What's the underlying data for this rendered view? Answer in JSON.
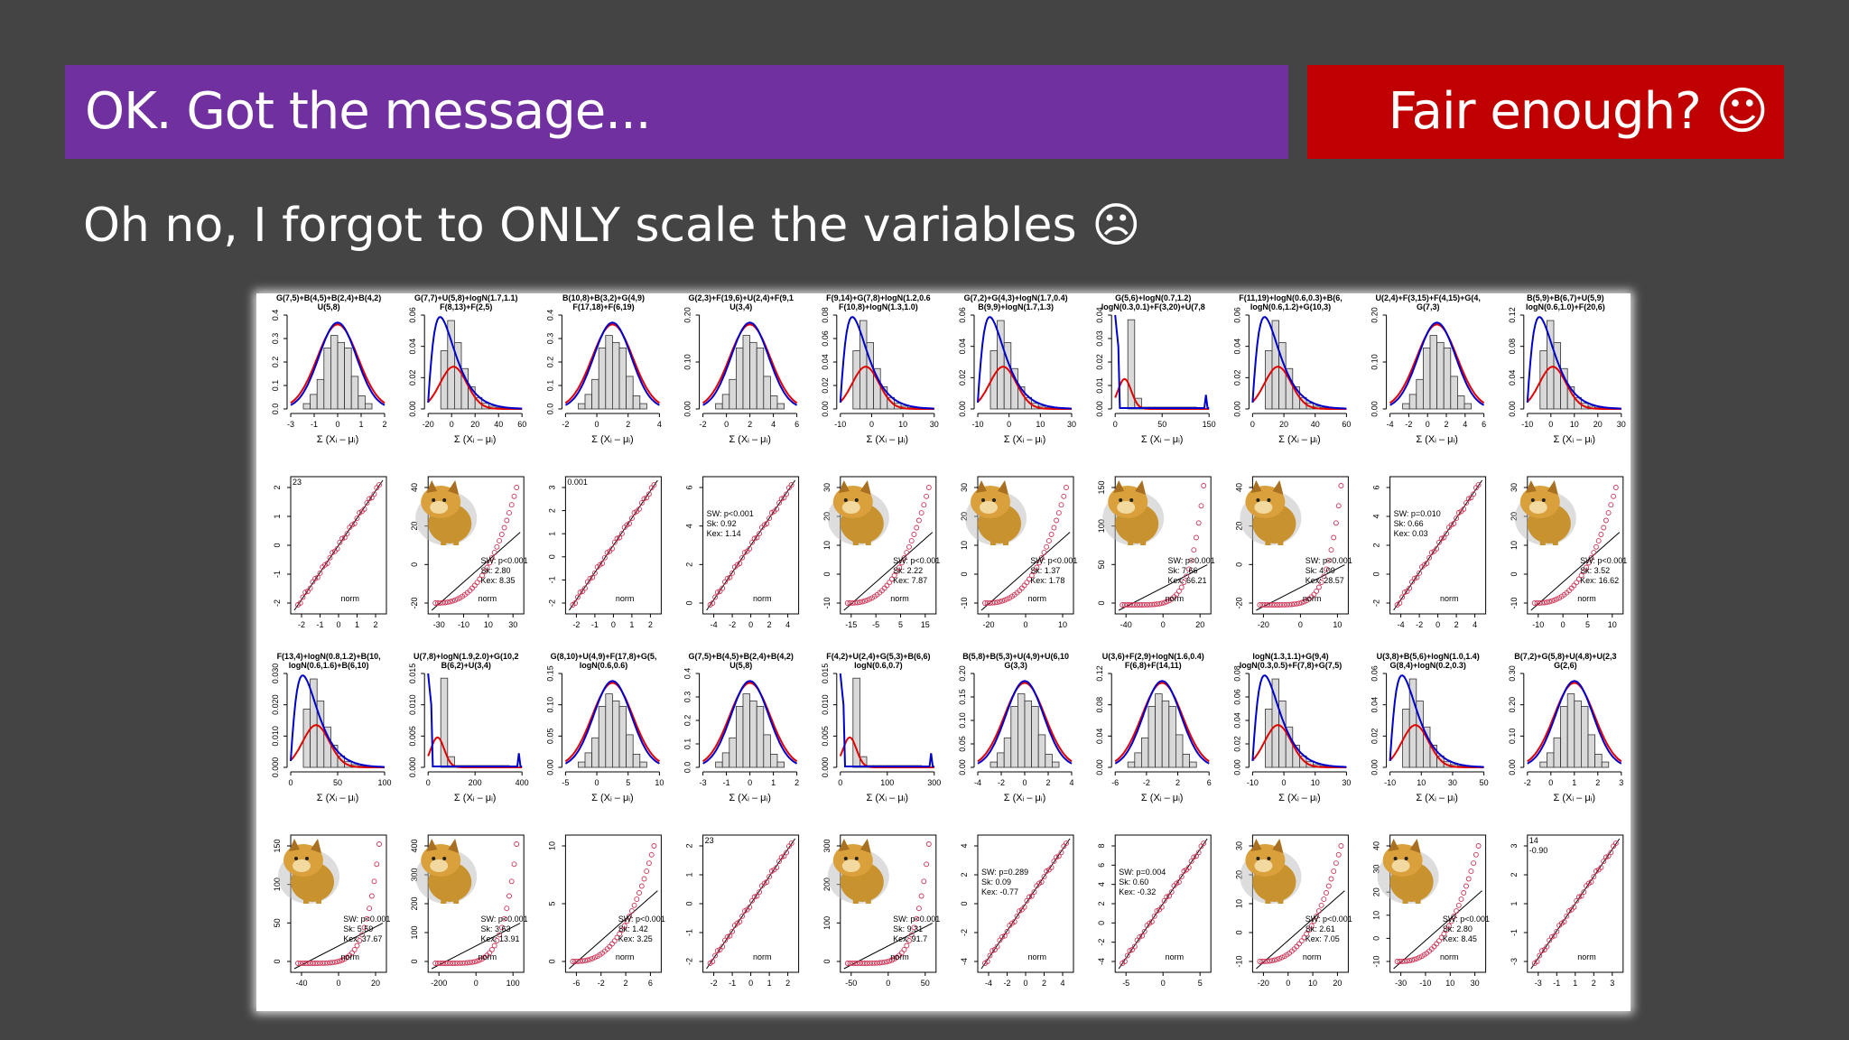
{
  "slide": {
    "banner_left": "OK. Got the message...",
    "banner_right": "Fair enough? ☺",
    "subtitle": "Oh no, I forgot to ONLY scale the variables ☹"
  },
  "colors": {
    "purple": "#7030A0",
    "red": "#C00000",
    "background": "#444444",
    "hist_fill": "#d9d9d9",
    "curve_blue": "#0000cc",
    "curve_red": "#e00000",
    "qq_points": "#cc3355"
  },
  "figure": {
    "hist_xlabel": "Σ (Xᵢ – μᵢ)",
    "qq_label": "norm",
    "meme_icon": "cheems-dog-icon",
    "histograms": [
      {
        "title": [
          "G(7,5)+B(4,5)+B(2,4)+B(4,2)",
          "U(5,8)"
        ],
        "xticks": [
          "-3",
          "-1",
          "0",
          "1",
          "2"
        ],
        "yticks": [
          "0.0",
          "0.1",
          "0.2",
          "0.3",
          "0.4"
        ],
        "shape": "normal"
      },
      {
        "title": [
          "G(7,7)+U(5,8)+logN(1.7,1.1)",
          "F(8,13)+F(2,5)"
        ],
        "xticks": [
          "-20",
          "0",
          "20",
          "40",
          "60"
        ],
        "yticks": [
          "0.00",
          "0.02",
          "0.04",
          "0.06"
        ],
        "shape": "skew"
      },
      {
        "title": [
          "B(10,8)+B(3,2)+G(4,9)",
          "F(17,18)+F(6,19)"
        ],
        "xticks": [
          "-2",
          "0",
          "2",
          "4"
        ],
        "yticks": [
          "0.0",
          "0.1",
          "0.2",
          "0.3",
          "0.4"
        ],
        "shape": "normal"
      },
      {
        "title": [
          "G(2,3)+F(19,6)+U(2,4)+F(9,1",
          "U(3,4)"
        ],
        "xticks": [
          "-2",
          "0",
          "2",
          "4",
          "6"
        ],
        "yticks": [
          "0.00",
          "0.10",
          "0.20"
        ],
        "shape": "normal"
      },
      {
        "title": [
          "F(9,14)+G(7,8)+logN(1.2,0.6",
          "F(10,8)+logN(1.3,1.0)"
        ],
        "xticks": [
          "-10",
          "0",
          "10",
          "30"
        ],
        "yticks": [
          "0.00",
          "0.02",
          "0.04",
          "0.06",
          "0.08"
        ],
        "shape": "skew"
      },
      {
        "title": [
          "G(7,2)+G(4,3)+logN(1.7,0.4)",
          "B(9,9)+logN(1.7,1.3)"
        ],
        "xticks": [
          "-10",
          "0",
          "10",
          "30"
        ],
        "yticks": [
          "0.00",
          "0.02",
          "0.04",
          "0.06"
        ],
        "shape": "skew"
      },
      {
        "title": [
          "G(5,6)+logN(0.7,1.2)",
          "logN(0.3,0.1)+F(3,20)+U(7,8"
        ],
        "xticks": [
          "0",
          "50",
          "150"
        ],
        "yticks": [
          "0.00",
          "0.01",
          "0.02",
          "0.03",
          "0.04"
        ],
        "shape": "extreme"
      },
      {
        "title": [
          "F(11,19)+logN(0.6,0.3)+B(6,",
          "logN(0.6,1.2)+G(10,3)"
        ],
        "xticks": [
          "0",
          "20",
          "40",
          "60"
        ],
        "yticks": [
          "0.00",
          "0.02",
          "0.04",
          "0.06"
        ],
        "shape": "skew"
      },
      {
        "title": [
          "U(2,4)+F(3,15)+F(4,15)+G(4,",
          "G(7,3)"
        ],
        "xticks": [
          "-4",
          "-2",
          "0",
          "2",
          "4",
          "6"
        ],
        "yticks": [
          "0.00",
          "0.10",
          "0.20"
        ],
        "shape": "normal"
      },
      {
        "title": [
          "B(5,9)+B(6,7)+U(5,9)",
          "logN(0.6,1.0)+F(20,6)"
        ],
        "xticks": [
          "-10",
          "0",
          "10",
          "20",
          "30"
        ],
        "yticks": [
          "0.00",
          "0.04",
          "0.08",
          "0.12"
        ],
        "shape": "skew"
      },
      {
        "title": [
          "F(13,4)+logN(0.8,1.2)+B(10,",
          "logN(0.6,1.6)+B(6,10)"
        ],
        "xticks": [
          "0",
          "50",
          "100"
        ],
        "yticks": [
          "0.000",
          "0.010",
          "0.020",
          "0.030"
        ],
        "shape": "skew"
      },
      {
        "title": [
          "U(7,8)+logN(1.9,2.0)+G(10,2",
          "B(6,2)+U(3,4)"
        ],
        "xticks": [
          "0",
          "200",
          "400"
        ],
        "yticks": [
          "0.000",
          "0.005",
          "0.010",
          "0.015"
        ],
        "shape": "extreme"
      },
      {
        "title": [
          "G(8,10)+U(4,9)+F(17,8)+G(5,",
          "logN(0.6,0.6)"
        ],
        "xticks": [
          "-5",
          "0",
          "5",
          "10"
        ],
        "yticks": [
          "0.00",
          "0.05",
          "0.10",
          "0.15"
        ],
        "shape": "normal"
      },
      {
        "title": [
          "G(7,5)+B(4,5)+B(2,4)+B(4,2)",
          "U(5,8)"
        ],
        "xticks": [
          "-3",
          "-1",
          "0",
          "1",
          "2"
        ],
        "yticks": [
          "0.0",
          "0.1",
          "0.2",
          "0.3",
          "0.4"
        ],
        "shape": "normal"
      },
      {
        "title": [
          "F(4,2)+U(2,4)+G(5,3)+B(6,6)",
          "logN(0.6,0.7)"
        ],
        "xticks": [
          "0",
          "100",
          "300"
        ],
        "yticks": [
          "0.000",
          "0.005",
          "0.010",
          "0.015"
        ],
        "shape": "extreme"
      },
      {
        "title": [
          "B(5,8)+B(5,3)+U(4,9)+U(6,10",
          "G(3,3)"
        ],
        "xticks": [
          "-4",
          "-2",
          "0",
          "2",
          "4"
        ],
        "yticks": [
          "0.00",
          "0.05",
          "0.10",
          "0.15",
          "0.20"
        ],
        "shape": "normal"
      },
      {
        "title": [
          "U(3,6)+F(2,9)+logN(1.6,0.4)",
          "F(6,8)+F(14,11)"
        ],
        "xticks": [
          "-6",
          "-2",
          "2",
          "6"
        ],
        "yticks": [
          "0.00",
          "0.04",
          "0.08",
          "0.12"
        ],
        "shape": "normal"
      },
      {
        "title": [
          "logN(1.3,1.1)+G(9,4)",
          "logN(0.3,0.5)+F(7,8)+G(7,5)"
        ],
        "xticks": [
          "-10",
          "0",
          "10",
          "30"
        ],
        "yticks": [
          "0.00",
          "0.02",
          "0.04",
          "0.06",
          "0.08"
        ],
        "shape": "skew"
      },
      {
        "title": [
          "U(3,8)+B(5,6)+logN(1.0,1.4)",
          "G(8,4)+logN(0.2,0.3)"
        ],
        "xticks": [
          "-10",
          "10",
          "30",
          "50"
        ],
        "yticks": [
          "0.00",
          "0.02",
          "0.04",
          "0.06"
        ],
        "shape": "skew"
      },
      {
        "title": [
          "B(7,2)+G(5,8)+U(4,8)+U(2,3",
          "G(2,6)"
        ],
        "xticks": [
          "-2",
          "0",
          "1",
          "2",
          "3"
        ],
        "yticks": [
          "0.00",
          "0.10",
          "0.20",
          "0.30"
        ],
        "shape": "normal"
      }
    ],
    "qqplots": [
      {
        "xticks": [
          "-2",
          "-1",
          "0",
          "1",
          "2"
        ],
        "yticks": [
          "-2",
          "-1",
          "0",
          "1",
          "2"
        ],
        "stats": [],
        "corner": "23",
        "meme": false,
        "shape": "normal"
      },
      {
        "xticks": [
          "-30",
          "-10",
          "10",
          "30"
        ],
        "yticks": [
          "-20",
          "0",
          "20",
          "40"
        ],
        "stats": [
          "SW: p<0.001",
          "Sk: 2.80",
          "Kex: 8.35"
        ],
        "corner": "",
        "meme": true,
        "shape": "skew"
      },
      {
        "xticks": [
          "-2",
          "-1",
          "0",
          "1",
          "2"
        ],
        "yticks": [
          "-2",
          "-1",
          "0",
          "1",
          "2",
          "3"
        ],
        "stats": [],
        "corner": "0.001",
        "meme": false,
        "shape": "normal"
      },
      {
        "xticks": [
          "-4",
          "-2",
          "0",
          "2",
          "4"
        ],
        "yticks": [
          "0",
          "2",
          "4",
          "6"
        ],
        "stats": [
          "SW: p<0.001",
          "Sk: 0.92",
          "Kex: 1.14"
        ],
        "corner": "",
        "meme": false,
        "shape": "normal"
      },
      {
        "xticks": [
          "-15",
          "-5",
          "5",
          "15"
        ],
        "yticks": [
          "-10",
          "0",
          "10",
          "20",
          "30"
        ],
        "stats": [
          "SW: p<0.001",
          "Sk: 2.22",
          "Kex: 7.87"
        ],
        "corner": "",
        "meme": true,
        "shape": "skew"
      },
      {
        "xticks": [
          "-20",
          "0",
          "10"
        ],
        "yticks": [
          "-10",
          "0",
          "10",
          "20",
          "30"
        ],
        "stats": [
          "SW: p<0.001",
          "Sk: 1.37",
          "Kex: 1.78"
        ],
        "corner": "",
        "meme": true,
        "shape": "skew"
      },
      {
        "xticks": [
          "-40",
          "0",
          "20"
        ],
        "yticks": [
          "0",
          "50",
          "100",
          "150"
        ],
        "stats": [
          "SW: p<0.001",
          "Sk: 7.66",
          "Kex: 66.21"
        ],
        "corner": "",
        "meme": true,
        "shape": "extreme"
      },
      {
        "xticks": [
          "-20",
          "0",
          "10"
        ],
        "yticks": [
          "-20",
          "0",
          "20",
          "40"
        ],
        "stats": [
          "SW: p<0.001",
          "Sk: 4.09",
          "Kex: 28.57"
        ],
        "corner": "",
        "meme": true,
        "shape": "extreme"
      },
      {
        "xticks": [
          "-4",
          "-2",
          "0",
          "2",
          "4"
        ],
        "yticks": [
          "-2",
          "0",
          "2",
          "4",
          "6"
        ],
        "stats": [
          "SW: p=0.010",
          "Sk: 0.66",
          "Kex: 0.03"
        ],
        "corner": "",
        "meme": false,
        "shape": "normal"
      },
      {
        "xticks": [
          "-10",
          "0",
          "5",
          "10"
        ],
        "yticks": [
          "-10",
          "0",
          "10",
          "20",
          "30"
        ],
        "stats": [
          "SW: p<0.001",
          "Sk: 3.52",
          "Kex: 16.62"
        ],
        "corner": "",
        "meme": true,
        "shape": "skew"
      },
      {
        "xticks": [
          "-40",
          "0",
          "20"
        ],
        "yticks": [
          "0",
          "50",
          "100",
          "150"
        ],
        "stats": [
          "SW: p<0.001",
          "Sk: 5.59",
          "Kex: 37.67"
        ],
        "corner": "",
        "meme": true,
        "shape": "extreme"
      },
      {
        "xticks": [
          "-200",
          "0",
          "100"
        ],
        "yticks": [
          "0",
          "100",
          "200",
          "300",
          "400"
        ],
        "stats": [
          "SW: p<0.001",
          "Sk: 3.63",
          "Kex: 13.91"
        ],
        "corner": "",
        "meme": true,
        "shape": "extreme"
      },
      {
        "xticks": [
          "-6",
          "-2",
          "2",
          "6"
        ],
        "yticks": [
          "0",
          "5",
          "10"
        ],
        "stats": [
          "SW: p<0.001",
          "Sk: 1.42",
          "Kex: 3.25"
        ],
        "corner": "",
        "meme": false,
        "shape": "skew"
      },
      {
        "xticks": [
          "-2",
          "-1",
          "0",
          "1",
          "2"
        ],
        "yticks": [
          "-2",
          "-1",
          "0",
          "1",
          "2"
        ],
        "stats": [],
        "corner": "23",
        "meme": false,
        "shape": "normal"
      },
      {
        "xticks": [
          "-50",
          "0",
          "50"
        ],
        "yticks": [
          "0",
          "100",
          "200",
          "300"
        ],
        "stats": [
          "SW: p<0.001",
          "Sk: 9.31",
          "Kex: 91.7"
        ],
        "corner": "",
        "meme": true,
        "shape": "extreme"
      },
      {
        "xticks": [
          "-4",
          "-2",
          "0",
          "2",
          "4"
        ],
        "yticks": [
          "-4",
          "-2",
          "0",
          "2",
          "4"
        ],
        "stats": [
          "SW: p=0.289",
          "Sk: 0.09",
          "Kex: -0.77"
        ],
        "corner": "",
        "meme": false,
        "shape": "normal"
      },
      {
        "xticks": [
          "-5",
          "0",
          "5"
        ],
        "yticks": [
          "-4",
          "-2",
          "0",
          "2",
          "4",
          "6",
          "8"
        ],
        "stats": [
          "SW: p=0.004",
          "Sk: 0.60",
          "Kex: -0.32"
        ],
        "corner": "",
        "meme": false,
        "shape": "normal"
      },
      {
        "xticks": [
          "-20",
          "0",
          "10",
          "20"
        ],
        "yticks": [
          "-10",
          "0",
          "10",
          "20",
          "30"
        ],
        "stats": [
          "SW: p<0.001",
          "Sk: 2.61",
          "Kex: 7.05"
        ],
        "corner": "",
        "meme": true,
        "shape": "skew"
      },
      {
        "xticks": [
          "-30",
          "-10",
          "10",
          "30"
        ],
        "yticks": [
          "-10",
          "0",
          "10",
          "20",
          "30",
          "40"
        ],
        "stats": [
          "SW: p<0.001",
          "Sk: 2.80",
          "Kex: 8.45"
        ],
        "corner": "",
        "meme": true,
        "shape": "skew"
      },
      {
        "xticks": [
          "-3",
          "-1",
          "1",
          "2",
          "3"
        ],
        "yticks": [
          "-3",
          "-1",
          "1",
          "2",
          "3"
        ],
        "stats": [],
        "corner": "14",
        "corner2": "-0.90",
        "meme": false,
        "shape": "normal"
      }
    ]
  }
}
